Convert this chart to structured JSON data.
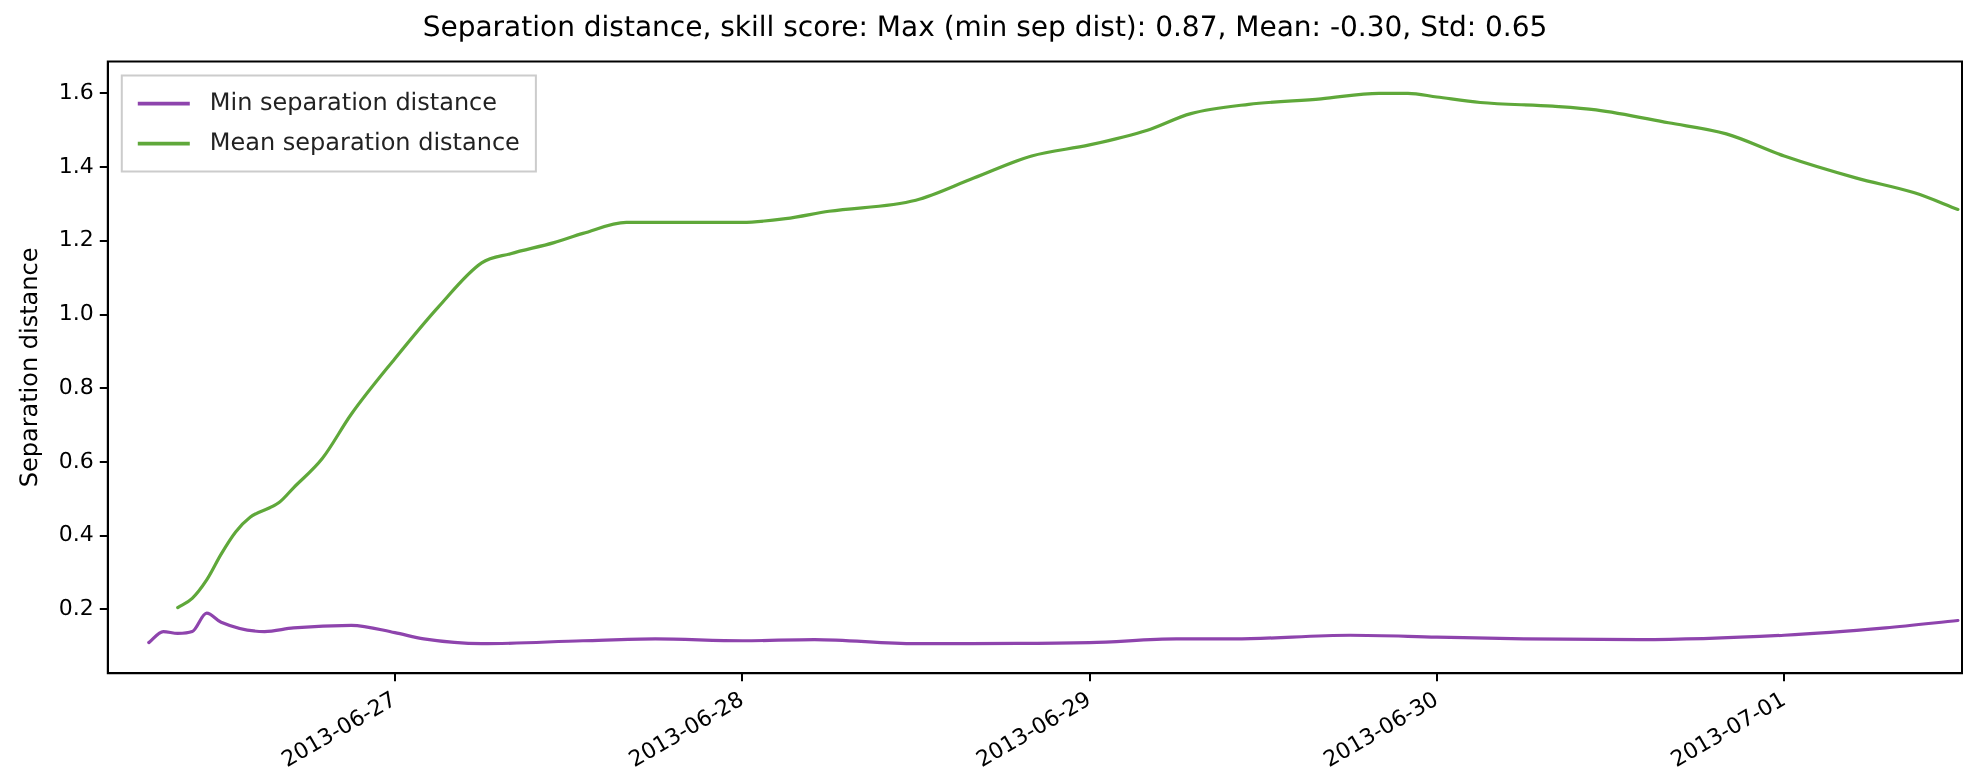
{
  "chart_data": {
    "type": "line",
    "title": "Separation distance, skill score: Max (min sep dist): 0.87, Mean: -0.30, Std: 0.65",
    "ylabel": "Separation distance",
    "xlim": [
      "2013-06-26T04:10",
      "2013-07-01T12:17"
    ],
    "xticks": [
      "2013-06-27",
      "2013-06-28",
      "2013-06-29",
      "2013-06-30",
      "2013-07-01"
    ],
    "ylim": [
      0.027,
      1.686
    ],
    "yticks": [
      {
        "value": 0.2,
        "label": "0.2"
      },
      {
        "value": 0.4,
        "label": "0.4"
      },
      {
        "value": 0.6,
        "label": "0.6"
      },
      {
        "value": 0.8,
        "label": "0.8"
      },
      {
        "value": 1,
        "label": "1.0"
      },
      {
        "value": 1.2,
        "label": "1.2"
      },
      {
        "value": 1.4,
        "label": "1.4"
      },
      {
        "value": 1.6,
        "label": "1.6"
      }
    ],
    "grid": false,
    "legend": "top left",
    "marker": "none",
    "line_style": "solid",
    "series": [
      {
        "name": "Min separation distance",
        "color": "#8e44ad",
        "x": [
          "2013-06-26T07:00",
          "2013-06-26T08:00",
          "2013-06-26T09:00",
          "2013-06-26T10:00",
          "2013-06-26T11:00",
          "2013-06-26T12:00",
          "2013-06-26T15:00",
          "2013-06-26T17:00",
          "2013-06-26T21:00",
          "2013-06-27T00:00",
          "2013-06-27T02:00",
          "2013-06-27T06:00",
          "2013-06-27T13:00",
          "2013-06-27T18:00",
          "2013-06-28T00:00",
          "2013-06-28T05:00",
          "2013-06-28T12:00",
          "2013-06-29T00:00",
          "2013-06-29T06:00",
          "2013-06-29T10:00",
          "2013-06-29T18:00",
          "2013-06-30T00:00",
          "2013-06-30T06:00",
          "2013-06-30T14:00",
          "2013-07-01T00:00",
          "2013-07-01T07:00",
          "2013-07-01T12:00"
        ],
        "values": [
          0.11,
          0.14,
          0.135,
          0.14,
          0.19,
          0.165,
          0.14,
          0.15,
          0.157,
          0.137,
          0.12,
          0.107,
          0.115,
          0.12,
          0.115,
          0.118,
          0.107,
          0.11,
          0.12,
          0.12,
          0.13,
          0.125,
          0.12,
          0.118,
          0.13,
          0.15,
          0.17
        ]
      },
      {
        "name": "Mean separation distance",
        "color": "#5fa83a",
        "x": [
          "2013-06-26T09:00",
          "2013-06-26T10:00",
          "2013-06-26T11:00",
          "2013-06-26T12:00",
          "2013-06-26T13:00",
          "2013-06-26T14:00",
          "2013-06-26T16:00",
          "2013-06-26T17:00",
          "2013-06-26T19:00",
          "2013-06-26T21:00",
          "2013-06-27T00:00",
          "2013-06-27T03:00",
          "2013-06-27T06:00",
          "2013-06-27T08:00",
          "2013-06-27T11:00",
          "2013-06-27T13:00",
          "2013-06-27T16:00",
          "2013-06-28T00:00",
          "2013-06-28T03:00",
          "2013-06-28T06:00",
          "2013-06-28T12:00",
          "2013-06-28T16:00",
          "2013-06-28T20:00",
          "2013-06-29T00:00",
          "2013-06-29T04:00",
          "2013-06-29T07:00",
          "2013-06-29T11:00",
          "2013-06-29T16:00",
          "2013-06-29T20:00",
          "2013-06-29T22:00",
          "2013-06-30T00:00",
          "2013-06-30T03:00",
          "2013-06-30T08:00",
          "2013-06-30T11:00",
          "2013-06-30T16:00",
          "2013-06-30T20:00",
          "2013-07-01T00:00",
          "2013-07-01T05:00",
          "2013-07-01T09:00",
          "2013-07-01T12:00"
        ],
        "values": [
          0.205,
          0.23,
          0.28,
          0.35,
          0.41,
          0.45,
          0.49,
          0.53,
          0.61,
          0.73,
          0.88,
          1.02,
          1.14,
          1.165,
          1.195,
          1.22,
          1.25,
          1.25,
          1.26,
          1.28,
          1.31,
          1.37,
          1.43,
          1.46,
          1.5,
          1.545,
          1.57,
          1.585,
          1.6,
          1.6,
          1.59,
          1.575,
          1.565,
          1.555,
          1.52,
          1.49,
          1.43,
          1.37,
          1.33,
          1.285
        ]
      }
    ]
  }
}
